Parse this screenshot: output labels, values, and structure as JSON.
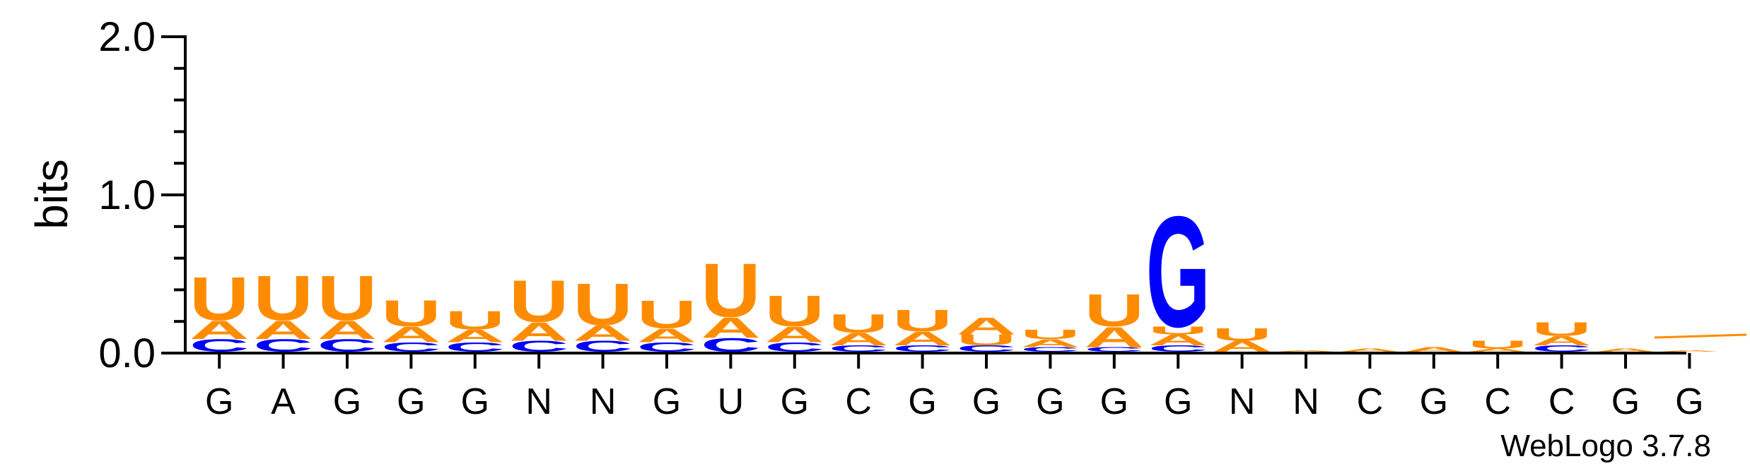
{
  "chart_data": {
    "type": "sequence-logo",
    "ylabel": "bits",
    "ylim": [
      0,
      2.0
    ],
    "yticks": [
      "0.0",
      "1.0",
      "2.0"
    ],
    "xlabels": [
      "G",
      "A",
      "G",
      "G",
      "G",
      "N",
      "N",
      "G",
      "U",
      "G",
      "C",
      "G",
      "G",
      "G",
      "G",
      "G",
      "N",
      "N",
      "C",
      "G",
      "C",
      "C",
      "G",
      "G"
    ],
    "colors": {
      "A": "#ff8c00",
      "U": "#ff8c00",
      "C": "#0000ff",
      "G": "#0000ff"
    },
    "positions": [
      {
        "stack": [
          [
            "C",
            0.08
          ],
          [
            "A",
            0.12
          ],
          [
            "U",
            0.28
          ]
        ]
      },
      {
        "stack": [
          [
            "C",
            0.08
          ],
          [
            "A",
            0.12
          ],
          [
            "U",
            0.29
          ]
        ]
      },
      {
        "stack": [
          [
            "C",
            0.08
          ],
          [
            "A",
            0.12
          ],
          [
            "U",
            0.29
          ]
        ]
      },
      {
        "stack": [
          [
            "C",
            0.06
          ],
          [
            "A",
            0.1
          ],
          [
            "U",
            0.17
          ]
        ]
      },
      {
        "stack": [
          [
            "C",
            0.06
          ],
          [
            "A",
            0.08
          ],
          [
            "U",
            0.12
          ]
        ]
      },
      {
        "stack": [
          [
            "C",
            0.07
          ],
          [
            "A",
            0.12
          ],
          [
            "U",
            0.27
          ]
        ]
      },
      {
        "stack": [
          [
            "C",
            0.07
          ],
          [
            "A",
            0.1
          ],
          [
            "U",
            0.27
          ]
        ]
      },
      {
        "stack": [
          [
            "C",
            0.06
          ],
          [
            "A",
            0.09
          ],
          [
            "U",
            0.18
          ]
        ]
      },
      {
        "stack": [
          [
            "C",
            0.09
          ],
          [
            "A",
            0.13
          ],
          [
            "U",
            0.35
          ]
        ]
      },
      {
        "stack": [
          [
            "C",
            0.06
          ],
          [
            "A",
            0.1
          ],
          [
            "U",
            0.2
          ]
        ]
      },
      {
        "stack": [
          [
            "C",
            0.04
          ],
          [
            "A",
            0.08
          ],
          [
            "U",
            0.12
          ]
        ]
      },
      {
        "stack": [
          [
            "C",
            0.04
          ],
          [
            "A",
            0.09
          ],
          [
            "U",
            0.14
          ]
        ]
      },
      {
        "stack": [
          [
            "C",
            0.04
          ],
          [
            "U",
            0.07
          ],
          [
            "A",
            0.11
          ]
        ]
      },
      {
        "stack": [
          [
            "C",
            0.03
          ],
          [
            "A",
            0.05
          ],
          [
            "U",
            0.06
          ]
        ]
      },
      {
        "stack": [
          [
            "C",
            0.03
          ],
          [
            "A",
            0.13
          ],
          [
            "U",
            0.21
          ]
        ]
      },
      {
        "stack": [
          [
            "C",
            0.04
          ],
          [
            "A",
            0.07
          ],
          [
            "U",
            0.05
          ],
          [
            "G",
            0.72
          ]
        ]
      },
      {
        "stack": [
          [
            "A",
            0.07
          ],
          [
            "U",
            0.08
          ]
        ]
      },
      {
        "stack": [
          [
            "A",
            0.01
          ]
        ]
      },
      {
        "stack": [
          [
            "A",
            0.02
          ]
        ]
      },
      {
        "stack": [
          [
            "A",
            0.03
          ]
        ]
      },
      {
        "stack": [
          [
            "A",
            0.02
          ],
          [
            "U",
            0.05
          ]
        ]
      },
      {
        "stack": [
          [
            "C",
            0.04
          ],
          [
            "A",
            0.06
          ],
          [
            "U",
            0.09
          ]
        ]
      },
      {
        "stack": [
          [
            "A",
            0.02
          ]
        ]
      },
      {
        "stack": [
          [
            "A",
            0.01
          ]
        ]
      }
    ]
  },
  "credit": "WebLogo 3.7.8"
}
